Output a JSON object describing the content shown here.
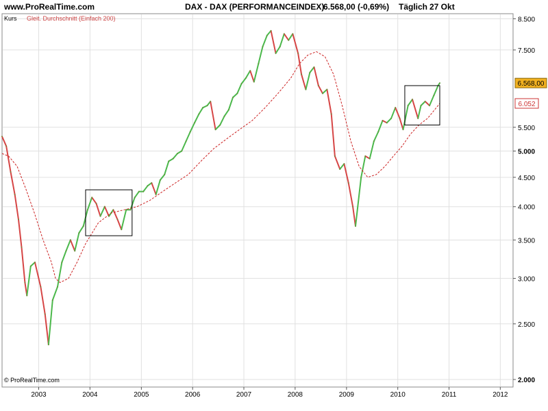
{
  "header": {
    "site": "www.ProRealTime.com",
    "instrument": "DAX - DAX (PERFORMANCEINDEX)",
    "quote": "6.568,00 (-0,69%)",
    "period": "Täglich",
    "date": "27 Okt"
  },
  "legend": {
    "price_label": "Kurs",
    "ma_label": "Gleit. Durchschnitt (Einfach 200)"
  },
  "copyright": "© ProRealTime.com",
  "colors": {
    "up": "#4bb84b",
    "down": "#d64545",
    "ma": "#cc2222",
    "last_badge_bg": "#f0b020",
    "ma_badge_text": "#cc3333",
    "grid": "#e0e0e0",
    "annotation_box": "#000000"
  },
  "chart_data": {
    "type": "line",
    "title": "DAX - DAX (PERFORMANCEINDEX)",
    "y_scale": "log",
    "ylim": [
      2000,
      8650
    ],
    "xlim": [
      "2002-04-15",
      "2012-04-01"
    ],
    "grid": true,
    "x_ticks": [
      "2003",
      "2004",
      "2005",
      "2006",
      "2007",
      "2008",
      "2009",
      "2010",
      "2011",
      "2012"
    ],
    "y_ticks": [
      {
        "value": 8500,
        "label": "8.500",
        "bold": false
      },
      {
        "value": 7500,
        "label": "7.500",
        "bold": false
      },
      {
        "value": 5500,
        "label": "5.500",
        "bold": false
      },
      {
        "value": 5000,
        "label": "5.000",
        "bold": true
      },
      {
        "value": 4500,
        "label": "4.500",
        "bold": false
      },
      {
        "value": 4000,
        "label": "4.000",
        "bold": false
      },
      {
        "value": 3500,
        "label": "3.500",
        "bold": false
      },
      {
        "value": 3000,
        "label": "3.000",
        "bold": false
      },
      {
        "value": 2500,
        "label": "2.500",
        "bold": false
      },
      {
        "value": 2000,
        "label": "2.000",
        "bold": true
      }
    ],
    "series": [
      {
        "name": "Kurs",
        "style": "daily price (green up / red down)",
        "x": [
          "2002-04-15",
          "2002-05-15",
          "2002-06-15",
          "2002-07-15",
          "2002-08-10",
          "2002-09-01",
          "2002-09-25",
          "2002-10-09",
          "2002-11-05",
          "2002-12-05",
          "2003-01-15",
          "2003-02-15",
          "2003-03-12",
          "2003-04-10",
          "2003-05-15",
          "2003-06-15",
          "2003-07-15",
          "2003-08-15",
          "2003-09-15",
          "2003-10-15",
          "2003-11-15",
          "2003-12-15",
          "2004-01-15",
          "2004-02-15",
          "2004-03-15",
          "2004-04-15",
          "2004-05-15",
          "2004-06-15",
          "2004-07-15",
          "2004-08-12",
          "2004-09-15",
          "2004-10-15",
          "2004-11-15",
          "2004-12-15",
          "2005-01-15",
          "2005-02-15",
          "2005-03-15",
          "2005-04-15",
          "2005-05-15",
          "2005-06-15",
          "2005-07-15",
          "2005-08-15",
          "2005-09-15",
          "2005-10-15",
          "2005-11-15",
          "2005-12-15",
          "2006-01-15",
          "2006-02-15",
          "2006-03-15",
          "2006-04-15",
          "2006-05-08",
          "2006-06-13",
          "2006-07-15",
          "2006-08-15",
          "2006-09-15",
          "2006-10-15",
          "2006-11-15",
          "2006-12-15",
          "2007-01-15",
          "2007-02-15",
          "2007-03-14",
          "2007-04-15",
          "2007-05-15",
          "2007-06-15",
          "2007-07-13",
          "2007-08-16",
          "2007-09-15",
          "2007-10-15",
          "2007-11-15",
          "2007-12-15",
          "2008-01-22",
          "2008-02-15",
          "2008-03-17",
          "2008-04-15",
          "2008-05-15",
          "2008-06-15",
          "2008-07-15",
          "2008-08-15",
          "2008-09-15",
          "2008-10-10",
          "2008-11-15",
          "2008-12-15",
          "2009-01-15",
          "2009-02-15",
          "2009-03-06",
          "2009-04-15",
          "2009-05-15",
          "2009-06-15",
          "2009-07-15",
          "2009-08-15",
          "2009-09-15",
          "2009-10-15",
          "2009-11-15",
          "2009-12-15",
          "2010-01-15",
          "2010-02-08",
          "2010-03-15",
          "2010-04-15",
          "2010-05-25",
          "2010-06-15",
          "2010-07-15",
          "2010-08-15",
          "2010-09-15",
          "2010-10-15",
          "2010-10-27"
        ],
        "values": [
          5300,
          5100,
          4600,
          4200,
          3800,
          3400,
          2950,
          2800,
          3150,
          3200,
          2900,
          2600,
          2300,
          2750,
          2900,
          3200,
          3350,
          3500,
          3350,
          3600,
          3700,
          3950,
          4150,
          4050,
          3850,
          4000,
          3850,
          3950,
          3800,
          3650,
          3950,
          3950,
          4150,
          4250,
          4250,
          4350,
          4400,
          4200,
          4450,
          4550,
          4800,
          4850,
          4950,
          5000,
          5200,
          5400,
          5600,
          5800,
          5950,
          6000,
          6100,
          5450,
          5550,
          5750,
          5900,
          6200,
          6300,
          6550,
          6700,
          6900,
          6600,
          7100,
          7600,
          7950,
          8100,
          7400,
          7600,
          8000,
          7800,
          8000,
          7400,
          6800,
          6400,
          6850,
          7000,
          6500,
          6300,
          6400,
          5800,
          4900,
          4650,
          4750,
          4400,
          4000,
          3700,
          4500,
          4900,
          4850,
          5200,
          5400,
          5650,
          5600,
          5700,
          5950,
          5700,
          5450,
          6000,
          6150,
          5700,
          6000,
          6100,
          6000,
          6250,
          6500,
          6568
        ]
      },
      {
        "name": "Gleit. Durchschnitt (Einfach 200)",
        "style": "dashed",
        "x": [
          "2002-04-15",
          "2002-06-01",
          "2002-08-01",
          "2002-10-01",
          "2002-12-01",
          "2003-02-01",
          "2003-04-01",
          "2003-05-01",
          "2003-06-01",
          "2003-08-01",
          "2003-10-01",
          "2003-12-01",
          "2004-03-01",
          "2004-06-01",
          "2004-09-01",
          "2004-12-01",
          "2005-03-01",
          "2005-06-01",
          "2005-09-01",
          "2005-12-01",
          "2006-03-01",
          "2006-06-01",
          "2006-09-01",
          "2006-12-01",
          "2007-03-01",
          "2007-06-01",
          "2007-09-01",
          "2007-12-01",
          "2008-02-01",
          "2008-04-01",
          "2008-06-01",
          "2008-08-01",
          "2008-10-01",
          "2008-12-01",
          "2009-02-01",
          "2009-04-01",
          "2009-06-01",
          "2009-08-01",
          "2009-10-01",
          "2009-12-01",
          "2010-02-01",
          "2010-04-01",
          "2010-06-01",
          "2010-08-01",
          "2010-10-27"
        ],
        "values": [
          4950,
          4900,
          4700,
          4300,
          3900,
          3500,
          3200,
          3000,
          2950,
          3000,
          3200,
          3450,
          3750,
          3900,
          3950,
          4000,
          4100,
          4250,
          4400,
          4550,
          4800,
          5050,
          5250,
          5450,
          5650,
          5950,
          6300,
          6700,
          7100,
          7350,
          7450,
          7300,
          6800,
          6000,
          5200,
          4700,
          4500,
          4550,
          4700,
          4900,
          5100,
          5350,
          5550,
          5700,
          6052
        ]
      }
    ],
    "annotations": [
      {
        "type": "box",
        "x0": "2003-12-01",
        "x1": "2004-10-27",
        "y0": 3560,
        "y1": 4280
      },
      {
        "type": "box",
        "x0": "2010-02-20",
        "x1": "2010-10-27",
        "y0": 5550,
        "y1": 6500
      }
    ],
    "last_value": {
      "value": 6568,
      "label": "6.568,00"
    },
    "ma_value": {
      "value": 6052,
      "label": "6.052"
    }
  }
}
